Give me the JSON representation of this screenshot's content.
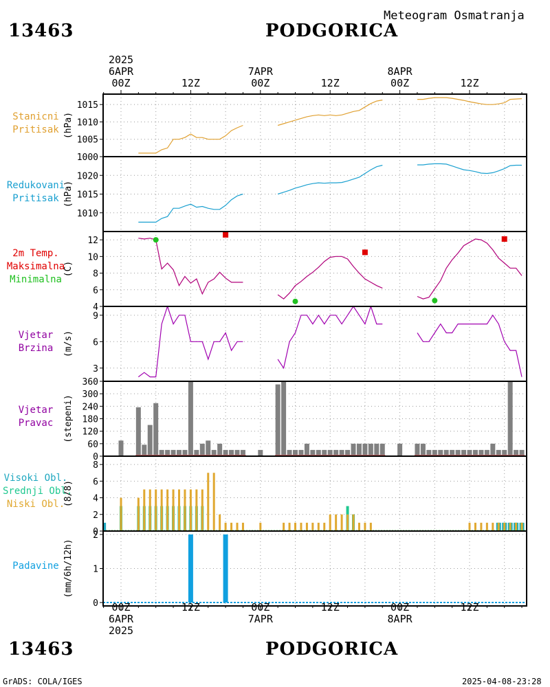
{
  "header": {
    "station_id": "13463",
    "station_name": "PODGORICA",
    "title": "Meteogram Osmatranja",
    "top_times": [
      {
        "lines": [
          "2025",
          "6APR",
          "00Z"
        ],
        "hour": 0
      },
      {
        "lines": [
          "12Z"
        ],
        "hour": 12
      },
      {
        "lines": [
          "7APR",
          "00Z"
        ],
        "hour": 24
      },
      {
        "lines": [
          "12Z"
        ],
        "hour": 36
      },
      {
        "lines": [
          "8APR",
          "00Z"
        ],
        "hour": 48
      },
      {
        "lines": [
          "12Z"
        ],
        "hour": 60
      }
    ],
    "bottom_times": [
      {
        "lines": [
          "00Z",
          "6APR",
          "2025"
        ],
        "hour": 0
      },
      {
        "lines": [
          "12Z"
        ],
        "hour": 12
      },
      {
        "lines": [
          "00Z",
          "7APR"
        ],
        "hour": 24
      },
      {
        "lines": [
          "12Z"
        ],
        "hour": 36
      },
      {
        "lines": [
          "00Z",
          "8APR"
        ],
        "hour": 48
      },
      {
        "lines": [
          "12Z"
        ],
        "hour": 60
      }
    ]
  },
  "footer": {
    "left": "GrADS: COLA/IGES",
    "right": "2025-04-08-23:28"
  },
  "colors": {
    "pressure_station": "#e0a030",
    "pressure_reduced": "#1aa0d0",
    "temp_line": "#b0007a",
    "temp_max": "#e00000",
    "temp_min": "#20c020",
    "wind_speed": "#a000b0",
    "wind_dir": "#808080",
    "wind_dir_base": "#c06060",
    "cloud_high": "#20a8c0",
    "cloud_mid": "#20c890",
    "cloud_low": "#e0a830",
    "precip": "#10a0e0",
    "label_wind": "#9000a0"
  },
  "chart_data": [
    {
      "type": "line",
      "panel": "station_pressure",
      "label_lines": [
        "Stanicni",
        "Pritisak"
      ],
      "ylabel": "(hPa)",
      "ylim": [
        1000,
        1018
      ],
      "yticks": [
        1000,
        1005,
        1010,
        1015
      ],
      "series": [
        {
          "segment": 1,
          "x": [
            3,
            4,
            5,
            6,
            7,
            8,
            9,
            10,
            11,
            12,
            13,
            14,
            15,
            16,
            17,
            18,
            19,
            20,
            21
          ],
          "values": [
            1001,
            1001,
            1001,
            1001,
            1002,
            1002.5,
            1005,
            1005,
            1005.5,
            1006.5,
            1005.5,
            1005.5,
            1005,
            1005,
            1005,
            1006,
            1007.5,
            1008.3,
            1009
          ]
        },
        {
          "segment": 2,
          "x": [
            27,
            28,
            29,
            30,
            31,
            32,
            33,
            34,
            35,
            36,
            37,
            38,
            39,
            40,
            41,
            42,
            43,
            44,
            45
          ],
          "values": [
            1009,
            1009.5,
            1010,
            1010.5,
            1011,
            1011.5,
            1011.8,
            1012,
            1011.8,
            1012,
            1011.8,
            1012,
            1012.5,
            1013,
            1013.3,
            1014.3,
            1015.3,
            1016,
            1016.3
          ]
        },
        {
          "segment": 3,
          "x": [
            51,
            52,
            53,
            54,
            55,
            56,
            57,
            58,
            59,
            60,
            61,
            62,
            63,
            64,
            65,
            66,
            67,
            68,
            69
          ],
          "values": [
            1016.5,
            1016.5,
            1016.8,
            1017,
            1017,
            1017,
            1016.8,
            1016.5,
            1016.2,
            1015.8,
            1015.5,
            1015.2,
            1015,
            1015,
            1015.2,
            1015.5,
            1016.5,
            1016.6,
            1016.7
          ]
        }
      ]
    },
    {
      "type": "line",
      "panel": "reduced_pressure",
      "label_lines": [
        "Redukovani",
        "Pritisak"
      ],
      "ylabel": "(hPa)",
      "ylim": [
        1005,
        1025
      ],
      "yticks": [
        1010,
        1015,
        1020
      ],
      "series": [
        {
          "segment": 1,
          "x": [
            3,
            4,
            5,
            6,
            7,
            8,
            9,
            10,
            11,
            12,
            13,
            14,
            15,
            16,
            17,
            18,
            19,
            20,
            21
          ],
          "values": [
            1007.5,
            1007.5,
            1007.5,
            1007.5,
            1008.5,
            1009,
            1011.2,
            1011.2,
            1011.8,
            1012.3,
            1011.5,
            1011.7,
            1011.2,
            1010.9,
            1010.9,
            1012,
            1013.5,
            1014.5,
            1015
          ]
        },
        {
          "segment": 2,
          "x": [
            27,
            28,
            29,
            30,
            31,
            32,
            33,
            34,
            35,
            36,
            37,
            38,
            39,
            40,
            41,
            42,
            43,
            44,
            45
          ],
          "values": [
            1015,
            1015.5,
            1016,
            1016.6,
            1017,
            1017.5,
            1017.8,
            1018,
            1017.9,
            1018,
            1018,
            1018.1,
            1018.5,
            1019,
            1019.5,
            1020.5,
            1021.5,
            1022.3,
            1022.7
          ]
        },
        {
          "segment": 3,
          "x": [
            51,
            52,
            53,
            54,
            55,
            56,
            57,
            58,
            59,
            60,
            61,
            62,
            63,
            64,
            65,
            66,
            67,
            68,
            69
          ],
          "values": [
            1022.8,
            1022.8,
            1023,
            1023.1,
            1023.1,
            1023,
            1022.5,
            1022,
            1021.5,
            1021.3,
            1021,
            1020.6,
            1020.5,
            1020.7,
            1021.2,
            1021.8,
            1022.6,
            1022.7,
            1022.7
          ]
        }
      ]
    },
    {
      "type": "line",
      "panel": "temperature",
      "label_lines": [
        "2m Temp.",
        "Maksimalna",
        "Minimalna"
      ],
      "label_colors": [
        "temp_max",
        "temp_max",
        "temp_min"
      ],
      "ylabel": "(C)",
      "ylim": [
        4,
        13
      ],
      "yticks": [
        4,
        6,
        8,
        10,
        12
      ],
      "series": [
        {
          "segment": 1,
          "x": [
            3,
            4,
            5,
            6,
            7,
            8,
            9,
            10,
            11,
            12,
            13,
            14,
            15,
            16,
            17,
            18,
            19,
            20,
            21
          ],
          "values": [
            12.2,
            12.1,
            12.2,
            12,
            8.5,
            9.2,
            8.4,
            6.5,
            7.6,
            6.8,
            7.3,
            5.5,
            6.9,
            7.3,
            8.1,
            7.4,
            6.9,
            6.9,
            6.9
          ]
        },
        {
          "segment": 2,
          "x": [
            27,
            28,
            29,
            30,
            31,
            32,
            33,
            34,
            35,
            36,
            37,
            38,
            39,
            40,
            41,
            42,
            43,
            44,
            45
          ],
          "values": [
            5.4,
            4.9,
            5.6,
            6.5,
            7,
            7.6,
            8.1,
            8.7,
            9.4,
            9.9,
            10,
            10,
            9.7,
            8.8,
            8,
            7.3,
            6.9,
            6.5,
            6.2
          ]
        },
        {
          "segment": 3,
          "x": [
            51,
            52,
            53,
            54,
            55,
            56,
            57,
            58,
            59,
            60,
            61,
            62,
            63,
            64,
            65,
            66,
            67,
            68,
            69
          ],
          "values": [
            5.2,
            4.9,
            5.1,
            6.1,
            7.1,
            8.6,
            9.6,
            10.4,
            11.3,
            11.7,
            12.1,
            12,
            11.6,
            10.8,
            9.8,
            9.2,
            8.6,
            8.6,
            7.7
          ]
        }
      ],
      "max_points": [
        {
          "x": 18,
          "value": 12.6
        },
        {
          "x": 42,
          "value": 10.5
        },
        {
          "x": 66,
          "value": 12.1
        }
      ],
      "min_points": [
        {
          "x": 6,
          "value": 12
        },
        {
          "x": 30,
          "value": 4.6
        },
        {
          "x": 54,
          "value": 4.7
        }
      ]
    },
    {
      "type": "line",
      "panel": "wind_speed",
      "label_lines": [
        "Vjetar",
        "Brzina"
      ],
      "ylabel": "(m/s)",
      "ylim": [
        1.5,
        10
      ],
      "yticks": [
        3,
        6,
        9
      ],
      "series": [
        {
          "segment": 1,
          "x": [
            3,
            4,
            5,
            6,
            7,
            8,
            9,
            10,
            11,
            12,
            13,
            14,
            15,
            16,
            17,
            18,
            19,
            20,
            21
          ],
          "values": [
            2,
            2.5,
            2,
            2,
            8,
            10,
            8,
            9,
            9,
            6,
            6,
            6,
            4,
            6,
            6,
            7,
            5,
            6,
            6
          ]
        },
        {
          "segment": 2,
          "x": [
            27,
            28,
            29,
            30,
            31,
            32,
            33,
            34,
            35,
            36,
            37,
            38,
            39,
            40,
            41,
            42,
            43,
            44,
            45
          ],
          "values": [
            4,
            3,
            6,
            7,
            9,
            9,
            8,
            9,
            8,
            9,
            9,
            8,
            9,
            10,
            9,
            8,
            10,
            8,
            8
          ]
        },
        {
          "segment": 3,
          "x": [
            51,
            52,
            53,
            54,
            55,
            56,
            57,
            58,
            59,
            60,
            61,
            62,
            63,
            64,
            65,
            66,
            67,
            68,
            69
          ],
          "values": [
            7,
            6,
            6,
            7,
            8,
            7,
            7,
            8,
            8,
            8,
            8,
            8,
            8,
            9,
            8,
            6,
            5,
            5,
            2
          ]
        }
      ]
    },
    {
      "type": "bar",
      "panel": "wind_direction",
      "label_lines": [
        "Vjetar",
        "Pravac"
      ],
      "ylabel": "(stepeni)",
      "ylim": [
        0,
        360
      ],
      "yticks": [
        0,
        60,
        120,
        180,
        240,
        300,
        360
      ],
      "x": [
        0,
        3,
        4,
        5,
        6,
        7,
        8,
        9,
        10,
        11,
        12,
        13,
        14,
        15,
        16,
        17,
        18,
        19,
        20,
        21,
        24,
        27,
        28,
        29,
        30,
        31,
        32,
        33,
        34,
        35,
        36,
        37,
        38,
        39,
        40,
        41,
        42,
        43,
        44,
        45,
        48,
        51,
        52,
        53,
        54,
        55,
        56,
        57,
        58,
        59,
        60,
        61,
        62,
        63,
        64,
        65,
        66,
        67,
        68,
        69
      ],
      "values": [
        75,
        235,
        55,
        150,
        255,
        30,
        30,
        30,
        30,
        30,
        360,
        30,
        60,
        75,
        30,
        60,
        30,
        30,
        30,
        30,
        30,
        345,
        360,
        30,
        30,
        30,
        60,
        30,
        30,
        30,
        30,
        30,
        30,
        30,
        60,
        60,
        60,
        60,
        60,
        60,
        60,
        60,
        60,
        30,
        30,
        30,
        30,
        30,
        30,
        30,
        30,
        30,
        30,
        30,
        60,
        30,
        30,
        360,
        30,
        30
      ]
    },
    {
      "type": "bar",
      "panel": "clouds",
      "label_lines": [
        "Visoki Obl.",
        "Srednji Obl.",
        "Niski Obl."
      ],
      "label_colors": [
        "cloud_high",
        "cloud_mid",
        "cloud_low"
      ],
      "ylabel": "(8/8)",
      "ylim": [
        0,
        9
      ],
      "yticks": [
        0,
        2,
        4,
        6,
        8
      ],
      "x": [
        -3,
        0,
        3,
        4,
        5,
        6,
        7,
        8,
        9,
        10,
        11,
        12,
        13,
        14,
        15,
        16,
        17,
        18,
        19,
        20,
        21,
        24,
        27,
        28,
        29,
        30,
        31,
        32,
        33,
        34,
        35,
        36,
        37,
        38,
        39,
        40,
        41,
        42,
        43,
        44,
        45,
        48,
        51,
        52,
        53,
        54,
        55,
        56,
        57,
        58,
        59,
        60,
        61,
        62,
        63,
        64,
        65,
        66,
        67,
        68,
        69
      ],
      "series": [
        {
          "name": "Visoki Obl.",
          "values": [
            1,
            0,
            0,
            0,
            0,
            0,
            0,
            0,
            0,
            0,
            0,
            0,
            0,
            0,
            0,
            0,
            0,
            0,
            0,
            0,
            0,
            0,
            0,
            0,
            0,
            0,
            0,
            0,
            0,
            0,
            0,
            0,
            0,
            0,
            0,
            0,
            0,
            0,
            0,
            0,
            0,
            0,
            0,
            0,
            0,
            0,
            0,
            0,
            0,
            0,
            0,
            0,
            0,
            0,
            0,
            0,
            1,
            1,
            1,
            1,
            1
          ]
        },
        {
          "name": "Srednji Obl.",
          "values": [
            0,
            3,
            3,
            3,
            3,
            3,
            3,
            3,
            3,
            3,
            3,
            3,
            3,
            3,
            0,
            0,
            0,
            0,
            0,
            0,
            0,
            0,
            0,
            0,
            0,
            0,
            0,
            0,
            0,
            0,
            0,
            0,
            0,
            0,
            3,
            2,
            0,
            0,
            0,
            0,
            0,
            0,
            0,
            0,
            0,
            0,
            0,
            0,
            0,
            0,
            0,
            0,
            0,
            0,
            0,
            0,
            1,
            1,
            1,
            1,
            1
          ]
        },
        {
          "name": "Niski Obl.",
          "values": [
            0,
            4,
            4,
            5,
            5,
            5,
            5,
            5,
            5,
            5,
            5,
            5,
            5,
            5,
            7,
            7,
            2,
            1,
            1,
            1,
            1,
            1,
            0,
            1,
            1,
            1,
            1,
            1,
            1,
            1,
            1,
            2,
            2,
            2,
            2,
            2,
            1,
            1,
            1,
            0,
            0,
            0,
            0,
            0,
            0,
            0,
            0,
            0,
            0,
            0,
            0,
            1,
            1,
            1,
            1,
            1,
            1,
            1,
            1,
            1,
            1
          ]
        }
      ]
    },
    {
      "type": "bar",
      "panel": "precipitation",
      "label_lines": [
        "Padavine"
      ],
      "ylabel": "(mm/6h/12h)",
      "ylim": [
        -0.1,
        2.1
      ],
      "yticks": [
        0,
        1,
        2
      ],
      "x": [
        12,
        18
      ],
      "values": [
        2,
        2
      ]
    }
  ]
}
